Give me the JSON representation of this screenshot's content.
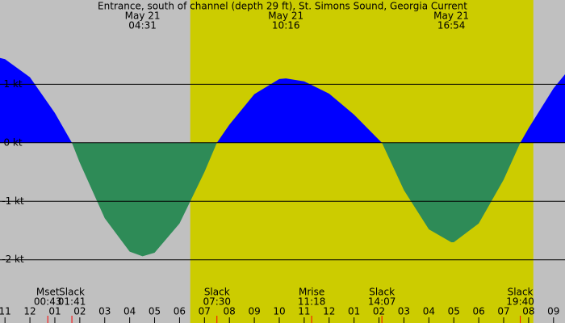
{
  "chart_data": {
    "type": "area",
    "title": "Entrance, south of channel (depth 29 ft), St. Simons Sound, Georgia Current",
    "x": [
      -1.2,
      -1,
      0,
      1,
      1.683,
      2,
      3,
      4,
      4.517,
      5,
      6,
      7,
      7.5,
      8,
      9,
      10,
      10.267,
      11,
      12,
      13,
      14,
      14.117,
      15,
      16,
      16.9,
      17,
      18,
      19,
      19.667,
      20,
      21,
      21.46
    ],
    "values": [
      1.45,
      1.43,
      1.12,
      0.51,
      0,
      -0.34,
      -1.29,
      -1.86,
      -1.94,
      -1.88,
      -1.38,
      -0.5,
      0,
      0.31,
      0.83,
      1.09,
      1.1,
      1.05,
      0.84,
      0.48,
      0.05,
      0,
      -0.81,
      -1.48,
      -1.7,
      -1.7,
      -1.38,
      -0.63,
      0,
      0.25,
      0.93,
      1.17
    ],
    "xlim": [
      -1.2,
      21.46
    ],
    "ylim": [
      -3.08,
      2.44
    ],
    "yticks": [
      {
        "value": 1,
        "label": "1 kt"
      },
      {
        "value": 0,
        "label": "0 kt"
      },
      {
        "value": -1,
        "label": "-1 kt"
      },
      {
        "value": -2,
        "label": "-2 kt"
      }
    ],
    "xticks": [
      {
        "value": -1,
        "label": "11"
      },
      {
        "value": 0,
        "label": "12"
      },
      {
        "value": 1,
        "label": "01"
      },
      {
        "value": 2,
        "label": "02"
      },
      {
        "value": 3,
        "label": "03"
      },
      {
        "value": 4,
        "label": "04"
      },
      {
        "value": 5,
        "label": "05"
      },
      {
        "value": 6,
        "label": "06"
      },
      {
        "value": 7,
        "label": "07"
      },
      {
        "value": 8,
        "label": "08"
      },
      {
        "value": 9,
        "label": "09"
      },
      10,
      11,
      12,
      {
        "value": 13,
        "label": "01"
      },
      {
        "value": 14,
        "label": "02"
      },
      {
        "value": 15,
        "label": "03"
      },
      {
        "value": 16,
        "label": "04"
      },
      {
        "value": 17,
        "label": "05"
      },
      {
        "value": 18,
        "label": "06"
      },
      {
        "value": 19,
        "label": "07"
      },
      {
        "value": 20,
        "label": "08"
      },
      {
        "value": 21,
        "label": "09"
      }
    ],
    "flood_color": "#0000ff",
    "ebb_color": "#2e8b57",
    "background": "#c0c0c0",
    "daylight": {
      "start": 6.43,
      "end": 20.19,
      "color": "#cccc00"
    },
    "top_events": [
      {
        "date": "May 21",
        "time": "04:31"
      },
      {
        "date": "May 21",
        "time": "10:16"
      },
      {
        "date": "May 21",
        "time": "16:54"
      }
    ],
    "bottom_events": [
      {
        "label": "Mset",
        "time": "00:43"
      },
      {
        "label": "Slack",
        "time": "01:41"
      },
      {
        "label": "Slack",
        "time": "07:30"
      },
      {
        "label": "Mrise",
        "time": "11:18"
      },
      {
        "label": "Slack",
        "time": "14:07"
      },
      {
        "label": "Slack",
        "time": "19:40"
      }
    ]
  }
}
